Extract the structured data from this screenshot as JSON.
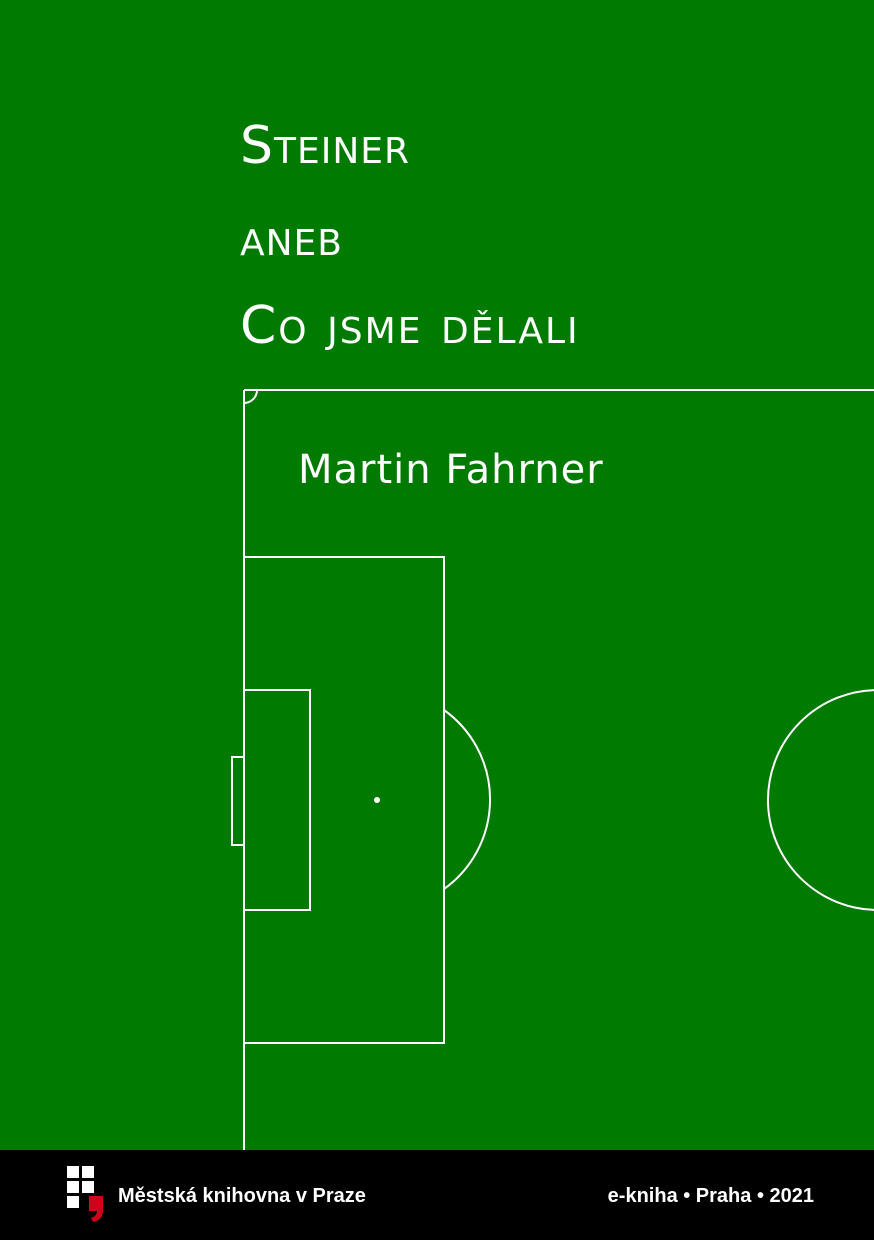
{
  "cover": {
    "title_line_1": "Steiner",
    "title_line_2": "aneb",
    "title_line_3": "Co jsme dělali",
    "author": "Martin Fahrner"
  },
  "footer": {
    "library_name": "Městská knihovna v Praze",
    "imprint": "e-kniha • Praha • 2021"
  },
  "colors": {
    "background_green": "#007a00",
    "line_white": "#ffffff",
    "footer_black": "#000000",
    "logo_red": "#d0021b"
  },
  "icons": {
    "publisher_logo": "mkp-logo-icon"
  }
}
